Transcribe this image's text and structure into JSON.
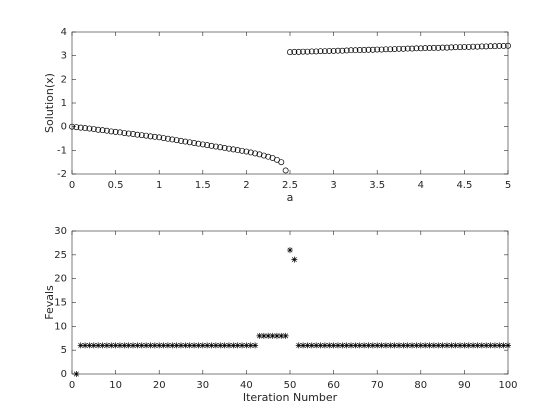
{
  "chart_data": [
    {
      "type": "scatter",
      "marker": "o",
      "color": "#000000",
      "xlabel": "a",
      "ylabel": "Solution(x)",
      "xlim": [
        0,
        5
      ],
      "ylim": [
        -2,
        4
      ],
      "xticks": [
        0,
        0.5,
        1,
        1.5,
        2,
        2.5,
        3,
        3.5,
        4,
        4.5,
        5
      ],
      "yticks": [
        -2,
        -1,
        0,
        1,
        2,
        3,
        4
      ],
      "x": [
        0,
        0.05,
        0.1,
        0.15,
        0.2,
        0.25,
        0.3,
        0.35,
        0.4,
        0.45,
        0.5,
        0.55,
        0.6,
        0.65,
        0.7,
        0.75,
        0.8,
        0.85,
        0.9,
        0.95,
        1,
        1.05,
        1.1,
        1.15,
        1.2,
        1.25,
        1.3,
        1.35,
        1.4,
        1.45,
        1.5,
        1.55,
        1.6,
        1.65,
        1.7,
        1.75,
        1.8,
        1.85,
        1.9,
        1.95,
        2,
        2.05,
        2.1,
        2.15,
        2.2,
        2.25,
        2.3,
        2.35,
        2.4,
        2.45,
        2.5,
        2.55,
        2.6,
        2.65,
        2.7,
        2.75,
        2.8,
        2.85,
        2.9,
        2.95,
        3,
        3.05,
        3.1,
        3.15,
        3.2,
        3.25,
        3.3,
        3.35,
        3.4,
        3.45,
        3.5,
        3.55,
        3.6,
        3.65,
        3.7,
        3.75,
        3.8,
        3.85,
        3.9,
        3.95,
        4,
        4.05,
        4.1,
        4.15,
        4.2,
        4.25,
        4.3,
        4.35,
        4.4,
        4.45,
        4.5,
        4.55,
        4.6,
        4.65,
        4.7,
        4.75,
        4.8,
        4.85,
        4.9,
        4.95,
        5
      ],
      "values": [
        0,
        -0.02,
        -0.04,
        -0.06,
        -0.08,
        -0.1,
        -0.13,
        -0.15,
        -0.17,
        -0.2,
        -0.22,
        -0.24,
        -0.27,
        -0.29,
        -0.31,
        -0.34,
        -0.36,
        -0.38,
        -0.41,
        -0.43,
        -0.45,
        -0.48,
        -0.51,
        -0.54,
        -0.57,
        -0.6,
        -0.63,
        -0.66,
        -0.69,
        -0.72,
        -0.75,
        -0.78,
        -0.81,
        -0.84,
        -0.87,
        -0.9,
        -0.93,
        -0.96,
        -0.99,
        -1.02,
        -1.05,
        -1.09,
        -1.13,
        -1.17,
        -1.22,
        -1.27,
        -1.32,
        -1.4,
        -1.5,
        -1.85,
        3.15,
        3.16,
        3.16,
        3.17,
        3.17,
        3.18,
        3.18,
        3.19,
        3.19,
        3.2,
        3.2,
        3.21,
        3.21,
        3.22,
        3.23,
        3.23,
        3.24,
        3.24,
        3.25,
        3.25,
        3.26,
        3.26,
        3.27,
        3.27,
        3.28,
        3.29,
        3.29,
        3.3,
        3.3,
        3.31,
        3.31,
        3.32,
        3.32,
        3.33,
        3.33,
        3.34,
        3.34,
        3.35,
        3.36,
        3.36,
        3.37,
        3.37,
        3.38,
        3.38,
        3.39,
        3.39,
        3.4,
        3.4,
        3.41,
        3.41,
        3.42
      ]
    },
    {
      "type": "scatter",
      "marker": "*",
      "color": "#000000",
      "xlabel": "Iteration Number",
      "ylabel": "Fevals",
      "xlim": [
        0,
        100
      ],
      "ylim": [
        0,
        30
      ],
      "xticks": [
        0,
        10,
        20,
        30,
        40,
        50,
        60,
        70,
        80,
        90,
        100
      ],
      "yticks": [
        0,
        5,
        10,
        15,
        20,
        25,
        30
      ],
      "x": [
        1,
        2,
        3,
        4,
        5,
        6,
        7,
        8,
        9,
        10,
        11,
        12,
        13,
        14,
        15,
        16,
        17,
        18,
        19,
        20,
        21,
        22,
        23,
        24,
        25,
        26,
        27,
        28,
        29,
        30,
        31,
        32,
        33,
        34,
        35,
        36,
        37,
        38,
        39,
        40,
        41,
        42,
        43,
        44,
        45,
        46,
        47,
        48,
        49,
        50,
        51,
        52,
        53,
        54,
        55,
        56,
        57,
        58,
        59,
        60,
        61,
        62,
        63,
        64,
        65,
        66,
        67,
        68,
        69,
        70,
        71,
        72,
        73,
        74,
        75,
        76,
        77,
        78,
        79,
        80,
        81,
        82,
        83,
        84,
        85,
        86,
        87,
        88,
        89,
        90,
        91,
        92,
        93,
        94,
        95,
        96,
        97,
        98,
        99,
        100
      ],
      "values": [
        0,
        6,
        6,
        6,
        6,
        6,
        6,
        6,
        6,
        6,
        6,
        6,
        6,
        6,
        6,
        6,
        6,
        6,
        6,
        6,
        6,
        6,
        6,
        6,
        6,
        6,
        6,
        6,
        6,
        6,
        6,
        6,
        6,
        6,
        6,
        6,
        6,
        6,
        6,
        6,
        6,
        6,
        8,
        8,
        8,
        8,
        8,
        8,
        8,
        26,
        24,
        6,
        6,
        6,
        6,
        6,
        6,
        6,
        6,
        6,
        6,
        6,
        6,
        6,
        6,
        6,
        6,
        6,
        6,
        6,
        6,
        6,
        6,
        6,
        6,
        6,
        6,
        6,
        6,
        6,
        6,
        6,
        6,
        6,
        6,
        6,
        6,
        6,
        6,
        6,
        6,
        6,
        6,
        6,
        6,
        6,
        6,
        6,
        6,
        6
      ]
    }
  ]
}
